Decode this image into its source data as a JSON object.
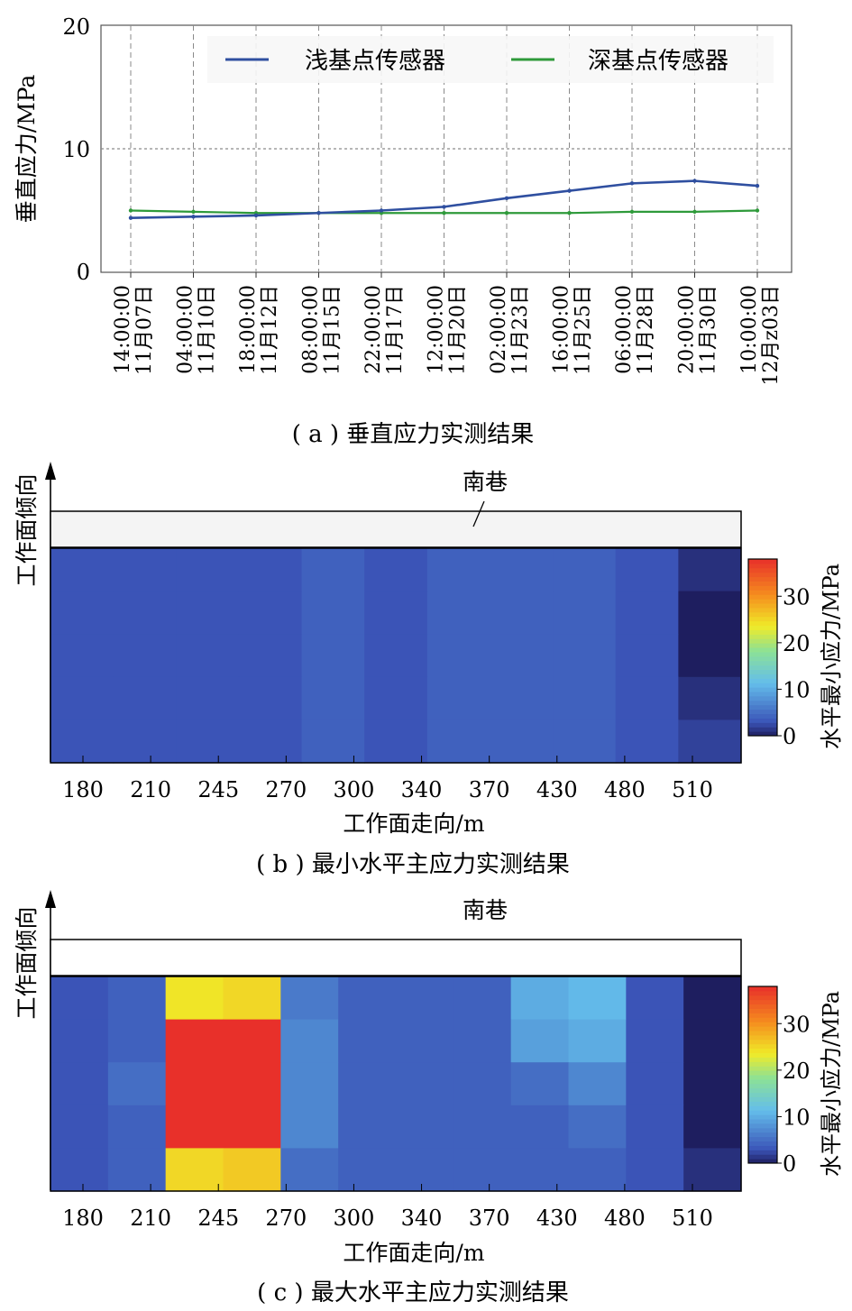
{
  "colors": {
    "shallow": "#2f4fa0",
    "deep": "#2e9a3a",
    "grid": "#8a8a8a",
    "heat_low": "#3b55b8",
    "heat_high": "#e8302a"
  },
  "icons": [
    "north-arrow-icon"
  ],
  "panel_a": {
    "caption": "( a ) 垂直应力实测结果",
    "ylabel": "垂直应力/MPa",
    "legend": {
      "shallow": "浅基点传感器",
      "deep": "深基点传感器"
    },
    "ticks": [
      {
        "time": "14:00:00",
        "date": "11月07日"
      },
      {
        "time": "04:00:00",
        "date": "11月10日"
      },
      {
        "time": "18:00:00",
        "date": "11月12日"
      },
      {
        "time": "08:00:00",
        "date": "11月15日"
      },
      {
        "time": "22:00:00",
        "date": "11月17日"
      },
      {
        "time": "12:00:00",
        "date": "11月20日"
      },
      {
        "time": "02:00:00",
        "date": "11月23日"
      },
      {
        "time": "16:00:00",
        "date": "11月25日"
      },
      {
        "time": "06:00:00",
        "date": "11月28日"
      },
      {
        "time": "20:00:00",
        "date": "11月30日"
      },
      {
        "time": "10:00:00",
        "date": "12月z03日"
      }
    ],
    "yticks": [
      "0",
      "10",
      "20"
    ]
  },
  "panel_b": {
    "caption": "( b ) 最小水平主应力实测结果",
    "xlabel": "工作面走向/m",
    "ylabel": "工作面倾向",
    "roadway": "南巷",
    "cbar_label": "水平最小应力/MPa",
    "xticks": [
      "180",
      "210",
      "245",
      "270",
      "300",
      "340",
      "370",
      "430",
      "480",
      "510"
    ],
    "cticks": [
      "0",
      "10",
      "20",
      "30"
    ]
  },
  "panel_c": {
    "caption": "( c ) 最大水平主应力实测结果",
    "xlabel": "工作面走向/m",
    "ylabel": "工作面倾向",
    "roadway": "南巷",
    "cbar_label": "水平最小应力/MPa",
    "xticks": [
      "180",
      "210",
      "245",
      "270",
      "300",
      "340",
      "370",
      "430",
      "480",
      "510"
    ],
    "cticks": [
      "0",
      "10",
      "20",
      "30"
    ]
  },
  "chart_data": [
    {
      "type": "line",
      "ylabel": "垂直应力/MPa",
      "ylim": [
        0,
        20
      ],
      "grid": true,
      "legend_position": "top",
      "x": [
        "11月07日 14:00:00",
        "11月10日 04:00:00",
        "11月12日 18:00:00",
        "11月15日 08:00:00",
        "11月17日 22:00:00",
        "11月20日 12:00:00",
        "11月23日 02:00:00",
        "11月25日 16:00:00",
        "11月28日 06:00:00",
        "11月30日 20:00:00",
        "12月z03日 10:00:00"
      ],
      "series": [
        {
          "name": "浅基点传感器",
          "values": [
            4.4,
            4.5,
            4.6,
            4.8,
            5.0,
            5.3,
            6.0,
            6.6,
            7.2,
            7.4,
            7.0
          ]
        },
        {
          "name": "深基点传感器",
          "values": [
            5.0,
            4.9,
            4.8,
            4.8,
            4.8,
            4.8,
            4.8,
            4.8,
            4.9,
            4.9,
            5.0
          ]
        }
      ]
    },
    {
      "type": "heatmap",
      "title": "( b ) 最小水平主应力实测结果",
      "xlabel": "工作面走向/m",
      "ylabel": "工作面倾向",
      "colorbar_label": "水平最小应力/MPa",
      "crange": [
        0,
        38
      ],
      "categories": [
        "180",
        "210",
        "245",
        "270",
        "300",
        "340",
        "370",
        "430",
        "480",
        "510"
      ],
      "values": [
        [
          3,
          3,
          3,
          3,
          4,
          3,
          4,
          4,
          4,
          3,
          1
        ],
        [
          3,
          3,
          3,
          3,
          4,
          3,
          4,
          4,
          4,
          3,
          0
        ],
        [
          3,
          3,
          3,
          3,
          4,
          3,
          4,
          4,
          4,
          3,
          0
        ],
        [
          3,
          3,
          3,
          3,
          4,
          3,
          4,
          4,
          4,
          3,
          1
        ],
        [
          3,
          3,
          3,
          3,
          4,
          3,
          4,
          4,
          4,
          3,
          2
        ]
      ]
    },
    {
      "type": "heatmap",
      "title": "( c ) 最大水平主应力实测结果",
      "xlabel": "工作面走向/m",
      "ylabel": "工作面倾向",
      "colorbar_label": "水平最小应力/MPa",
      "crange": [
        0,
        38
      ],
      "categories": [
        "180",
        "210",
        "245",
        "270",
        "300",
        "340",
        "370",
        "430",
        "480",
        "510"
      ],
      "values": [
        [
          3,
          4,
          24,
          25,
          6,
          4,
          4,
          4,
          10,
          11,
          3,
          0
        ],
        [
          3,
          4,
          38,
          38,
          7,
          4,
          4,
          4,
          9,
          10,
          3,
          0
        ],
        [
          3,
          5,
          38,
          38,
          7,
          4,
          4,
          4,
          5,
          7,
          3,
          0
        ],
        [
          3,
          4,
          38,
          38,
          7,
          4,
          4,
          4,
          4,
          5,
          3,
          0
        ],
        [
          3,
          4,
          25,
          26,
          5,
          4,
          4,
          4,
          4,
          4,
          3,
          1
        ]
      ]
    }
  ]
}
